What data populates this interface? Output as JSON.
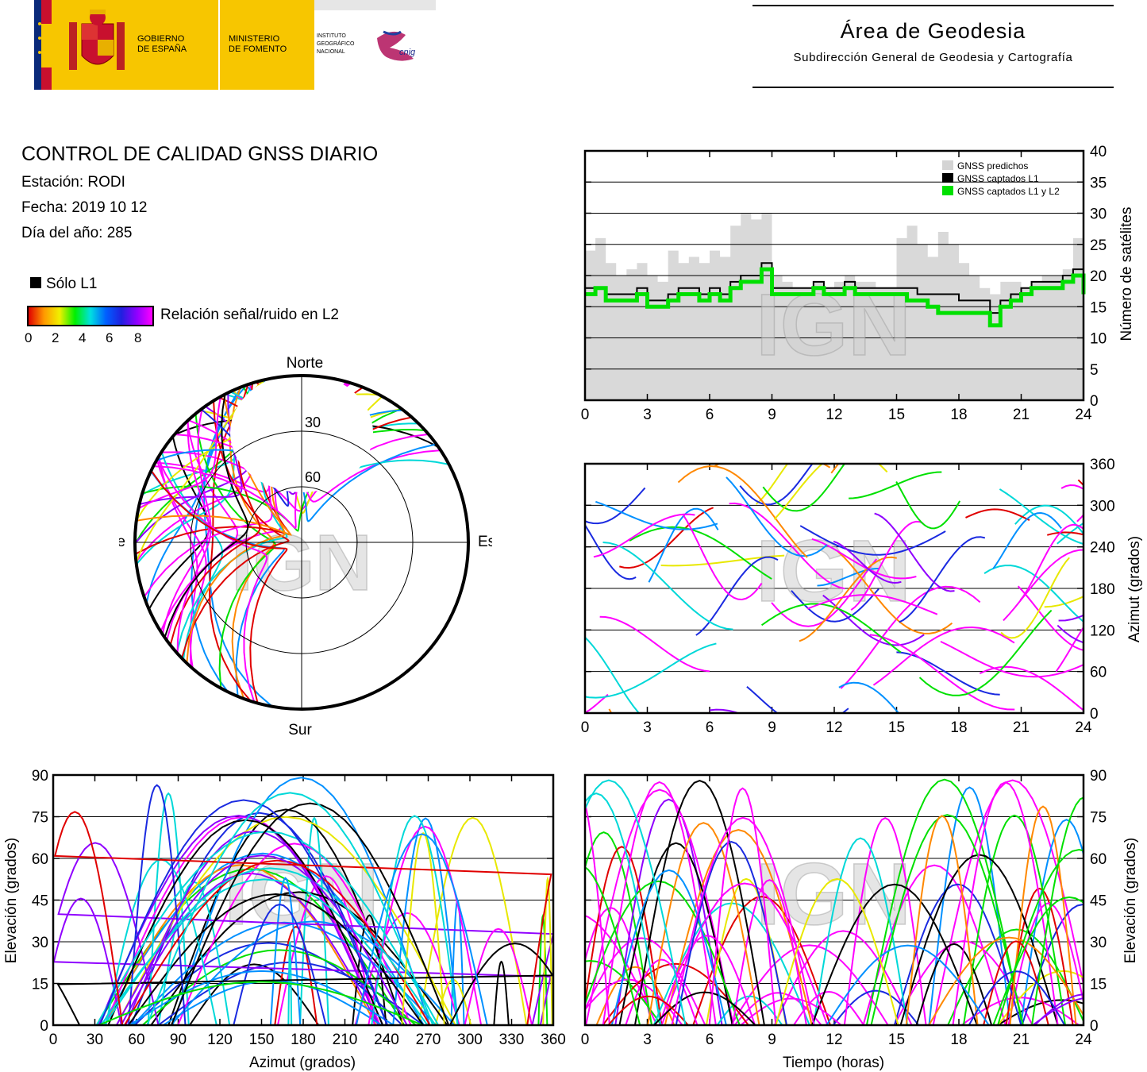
{
  "header": {
    "logo_gov": "GOBIERNO\nDE ESPAÑA",
    "logo_gov_l1": "GOBIERNO",
    "logo_gov_l2": "DE ESPAÑA",
    "logo_min_l1": "MINISTERIO",
    "logo_min_l2": "DE FOMENTO",
    "logo_ign_l1": "INSTITUTO",
    "logo_ign_l2": "GEOGRÁFICO",
    "logo_ign_l3": "NACIONAL",
    "logo_cnig": "cnig",
    "area_title": "Área de Geodesia",
    "area_subtitle": "Subdirección General de Geodesia y Cartografía",
    "colors": {
      "yellow": "#f7c600",
      "red": "#c8102e",
      "blue": "#0a2a7a"
    }
  },
  "info": {
    "title": "CONTROL DE CALIDAD GNSS DIARIO",
    "station": "Estación: RODI",
    "date": "Fecha: 2019 10 12",
    "doy": "Día del año: 285",
    "solo_l1": "Sólo L1",
    "snr_label": "Relación señal/ruido en L2",
    "snr_ticks": [
      "0",
      "2",
      "4",
      "6",
      "8"
    ]
  },
  "watermark": "IGN",
  "chart_data": [
    {
      "id": "satellites",
      "type": "area",
      "xlim": [
        0,
        24
      ],
      "ylim": [
        0,
        40
      ],
      "xticks": [
        "0",
        "3",
        "6",
        "9",
        "12",
        "15",
        "18",
        "21",
        "24"
      ],
      "yticks": [
        "0",
        "5",
        "10",
        "15",
        "20",
        "25",
        "30",
        "35",
        "40"
      ],
      "ylabel": "Número de satélites",
      "legend": [
        "GNSS predichos",
        "GNSS captados L1",
        "GNSS captados L1 y L2"
      ],
      "legend_position": "top-right",
      "grid": "horizontal",
      "x": [
        0,
        0.5,
        1,
        1.5,
        2,
        2.5,
        3,
        3.5,
        4,
        4.5,
        5,
        5.5,
        6,
        6.5,
        7,
        7.5,
        8,
        8.5,
        9,
        9.5,
        10,
        10.5,
        11,
        11.5,
        12,
        12.5,
        13,
        13.5,
        14,
        14.5,
        15,
        15.5,
        16,
        16.5,
        17,
        17.5,
        18,
        18.5,
        19,
        19.5,
        20,
        20.5,
        21,
        21.5,
        22,
        22.5,
        23,
        23.5,
        24
      ],
      "series": [
        {
          "name": "GNSS predichos",
          "color": "#d9d9d9",
          "values": [
            24,
            26,
            22,
            20,
            21,
            22,
            20,
            19,
            24,
            22,
            23,
            22,
            24,
            23,
            28,
            30,
            29,
            30,
            20,
            19,
            18,
            18,
            19,
            18,
            19,
            20,
            19,
            19,
            18,
            18,
            26,
            28,
            25,
            23,
            27,
            25,
            22,
            20,
            18,
            17,
            19,
            19,
            18,
            19,
            20,
            20,
            21,
            26,
            22
          ]
        },
        {
          "name": "GNSS captados L1",
          "color": "#000000",
          "values": [
            18,
            18,
            17,
            17,
            17,
            18,
            16,
            16,
            17,
            18,
            18,
            17,
            18,
            17,
            19,
            20,
            20,
            22,
            18,
            18,
            18,
            18,
            19,
            18,
            18,
            19,
            18,
            18,
            18,
            18,
            18,
            18,
            17,
            17,
            17,
            17,
            16,
            16,
            16,
            14,
            16,
            17,
            18,
            19,
            19,
            19,
            20,
            21,
            18
          ]
        },
        {
          "name": "GNSS captados L1 y L2",
          "color": "#00e000",
          "values": [
            17,
            18,
            16,
            16,
            16,
            17,
            15,
            15,
            16,
            17,
            17,
            16,
            17,
            16,
            18,
            19,
            19,
            21,
            17,
            17,
            17,
            17,
            18,
            17,
            17,
            18,
            17,
            17,
            17,
            17,
            17,
            16,
            16,
            15,
            14,
            14,
            14,
            14,
            14,
            12,
            15,
            16,
            17,
            18,
            18,
            18,
            19,
            20,
            17
          ]
        }
      ]
    },
    {
      "id": "azimuth-time",
      "type": "scatter",
      "xlim": [
        0,
        24
      ],
      "ylim": [
        0,
        360
      ],
      "xticks": [
        "0",
        "3",
        "6",
        "9",
        "12",
        "15",
        "18",
        "21",
        "24"
      ],
      "yticks": [
        "0",
        "60",
        "120",
        "180",
        "240",
        "300",
        "360"
      ],
      "ylabel": "Azimut (grados)",
      "grid": "horizontal"
    },
    {
      "id": "elevation-azimuth",
      "type": "scatter",
      "xlim": [
        0,
        360
      ],
      "ylim": [
        0,
        90
      ],
      "xticks": [
        "0",
        "30",
        "60",
        "90",
        "120",
        "150",
        "180",
        "210",
        "240",
        "270",
        "300",
        "330",
        "360"
      ],
      "yticks": [
        "0",
        "15",
        "30",
        "45",
        "60",
        "75",
        "90"
      ],
      "xlabel": "Azimut (grados)",
      "ylabel": "Elevación (grados)",
      "grid": "horizontal"
    },
    {
      "id": "elevation-time",
      "type": "scatter",
      "xlim": [
        0,
        24
      ],
      "ylim": [
        0,
        90
      ],
      "xticks": [
        "0",
        "3",
        "6",
        "9",
        "12",
        "15",
        "18",
        "21",
        "24"
      ],
      "yticks": [
        "0",
        "15",
        "30",
        "45",
        "60",
        "75",
        "90"
      ],
      "xlabel": "Tiempo (horas)",
      "ylabel": "Elevación (grados)",
      "grid": "horizontal"
    },
    {
      "id": "skyplot",
      "type": "scatter",
      "labels": {
        "north": "Norte",
        "south": "Sur",
        "east": "Este",
        "west": "Oeste"
      },
      "rings": [
        "30",
        "60"
      ]
    }
  ]
}
